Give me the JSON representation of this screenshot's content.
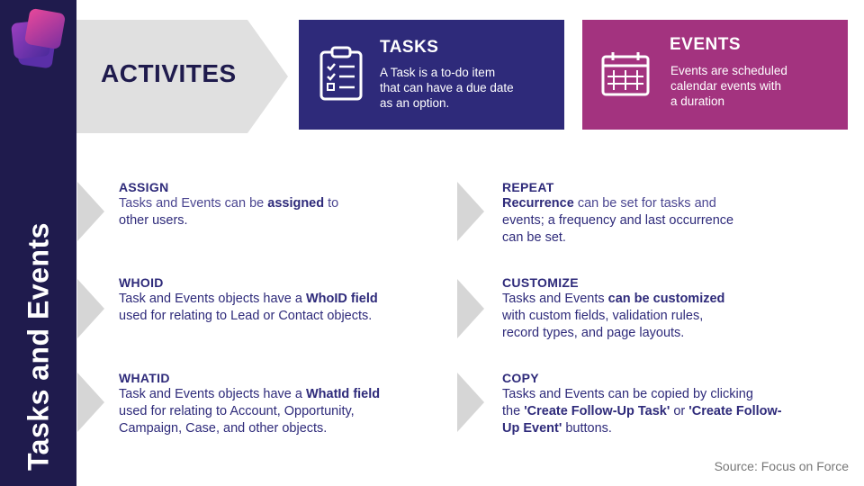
{
  "sidebar": {
    "title": "Tasks and Events"
  },
  "activities": {
    "label": "ACTIVITES"
  },
  "tasks_box": {
    "title": "TASKS",
    "line1": "A Task is a to-do item",
    "line2": "that can have a due date",
    "line3": "as an option.",
    "icon": "clipboard-checklist-icon"
  },
  "events_box": {
    "title": "EVENTS",
    "line1": "Events are scheduled",
    "line2": "calendar events with",
    "line3": "a duration",
    "icon": "calendar-icon"
  },
  "items": [
    {
      "heading": "ASSIGN",
      "l1a": "Tasks and Events can be ",
      "l1b": "assigned",
      "l1c": " to",
      "l2": "other users."
    },
    {
      "heading": "WHOID",
      "l1a": "Task and Events objects have a ",
      "l1b": "WhoID field",
      "l2": "used for relating to Lead or Contact objects."
    },
    {
      "heading": "WHATID",
      "l1a": "Task and Events objects have a ",
      "l1b": "WhatId field",
      "l2": "used for relating to Account, Opportunity,",
      "l3": "Campaign, Case, and other objects."
    },
    {
      "heading": "REPEAT",
      "l1a": "Recurrence",
      "l1b": " can be set for tasks and",
      "l2": "events; a frequency and last occurrence",
      "l3": "can be set."
    },
    {
      "heading": "CUSTOMIZE",
      "l1a": "Tasks and Events ",
      "l1b": "can be customized",
      "l2": "with custom fields, validation rules,",
      "l3": "record types, and page layouts."
    },
    {
      "heading": "COPY",
      "l1a": "Tasks and Events can be copied by clicking",
      "l2a": "the ",
      "l2b": "'Create Follow-Up Task'",
      "l2c": " or ",
      "l2d": "'Create Follow-",
      "l3a": "Up Event'",
      "l3b": " buttons."
    }
  ],
  "source": "Source: Focus on Force",
  "colors": {
    "navy": "#1f1b4d",
    "indigo": "#2e2a7a",
    "magenta": "#a3337f",
    "arrow_gray": "#e0e0e0"
  }
}
